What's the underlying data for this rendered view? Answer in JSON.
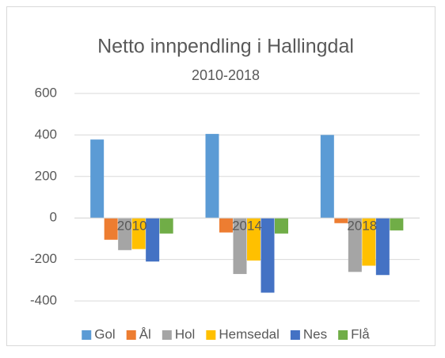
{
  "chart_data": {
    "type": "bar",
    "title": "Netto innpendling i Hallingdal",
    "subtitle": "2010-2018",
    "categories": [
      "2010",
      "2014",
      "2018"
    ],
    "series": [
      {
        "name": "Gol",
        "color": "#5b9bd5",
        "values": [
          378,
          405,
          400
        ]
      },
      {
        "name": "Ål",
        "color": "#ed7d31",
        "values": [
          -105,
          -70,
          -25
        ]
      },
      {
        "name": "Hol",
        "color": "#a5a5a5",
        "values": [
          -155,
          -270,
          -260
        ]
      },
      {
        "name": "Hemsedal",
        "color": "#ffc000",
        "values": [
          -150,
          -205,
          -230
        ]
      },
      {
        "name": "Nes",
        "color": "#4472c4",
        "values": [
          -210,
          -360,
          -275
        ]
      },
      {
        "name": "Flå",
        "color": "#70ad47",
        "values": [
          -75,
          -75,
          -60
        ]
      }
    ],
    "ylim": [
      -400,
      600
    ],
    "yticks": [
      -400,
      -200,
      0,
      200,
      400,
      600
    ],
    "grid": true,
    "legend": "bottom"
  }
}
